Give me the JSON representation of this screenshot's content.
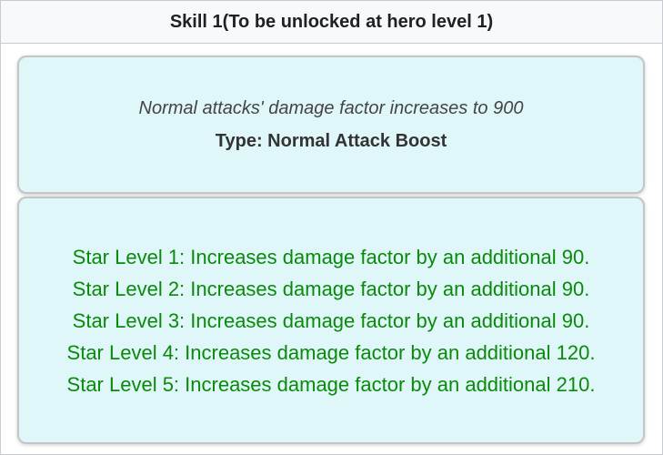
{
  "header": {
    "title": "Skill 1(To be unlocked at hero level 1)"
  },
  "skill": {
    "description": "Normal attacks' damage factor increases to 900",
    "type": "Type: Normal Attack Boost"
  },
  "star_levels": [
    "Star Level 1: Increases damage factor by an additional 90.",
    "Star Level 2: Increases damage factor by an additional 90.",
    "Star Level 3: Increases damage factor by an additional 90.",
    "Star Level 4: Increases damage factor by an additional 120.",
    "Star Level 5: Increases damage factor by an additional 210."
  ],
  "colors": {
    "card_bg": "#dff7f9",
    "star_text": "#0a8a0a"
  }
}
